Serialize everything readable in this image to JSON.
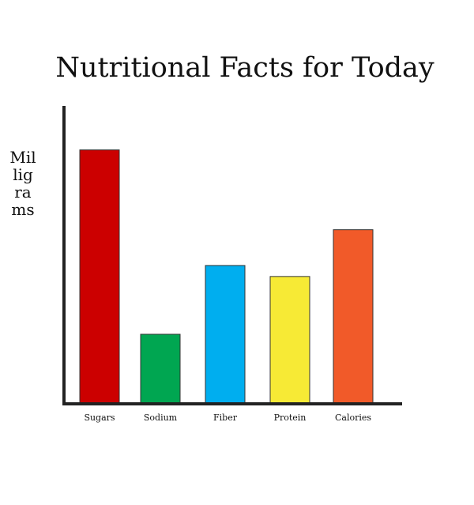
{
  "chart_data": {
    "type": "bar",
    "title": "Nutritional Facts for Today",
    "xlabel": "",
    "ylabel": "Milligrams",
    "categories": [
      "Sugars",
      "Sodium",
      "Fiber",
      "Protein",
      "Calories"
    ],
    "values": [
      92,
      25,
      50,
      46,
      63
    ],
    "ylim": [
      0,
      108
    ],
    "grid": false,
    "legend": "none",
    "colors": [
      "#cc0000",
      "#00a651",
      "#00aeef",
      "#f7ea35",
      "#f15a29"
    ]
  }
}
